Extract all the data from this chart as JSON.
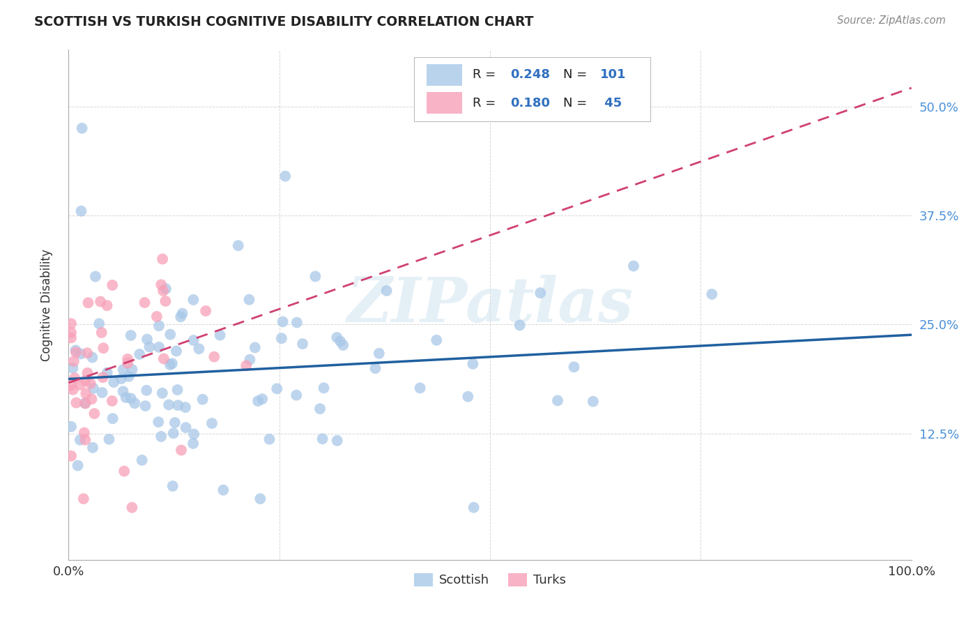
{
  "title": "SCOTTISH VS TURKISH COGNITIVE DISABILITY CORRELATION CHART",
  "source": "Source: ZipAtlas.com",
  "ylabel": "Cognitive Disability",
  "watermark": "ZIPatlas",
  "xlim": [
    0.0,
    1.0
  ],
  "ylim": [
    -0.02,
    0.565
  ],
  "yticks": [
    0.125,
    0.25,
    0.375,
    0.5
  ],
  "ytick_labels": [
    "12.5%",
    "25.0%",
    "37.5%",
    "50.0%"
  ],
  "legend_r_scottish": "0.248",
  "legend_n_scottish": "101",
  "legend_r_turks": "0.180",
  "legend_n_turks": "45",
  "scottish_color": "#a8c8e8",
  "turks_color": "#f8a0b8",
  "scottish_line_color": "#2060a0",
  "turks_line_color": "#d04070",
  "background_color": "#ffffff",
  "grid_color": "#cccccc",
  "title_color": "#222222",
  "right_axis_color": "#4a90d9",
  "text_color_blue": "#3070c0"
}
